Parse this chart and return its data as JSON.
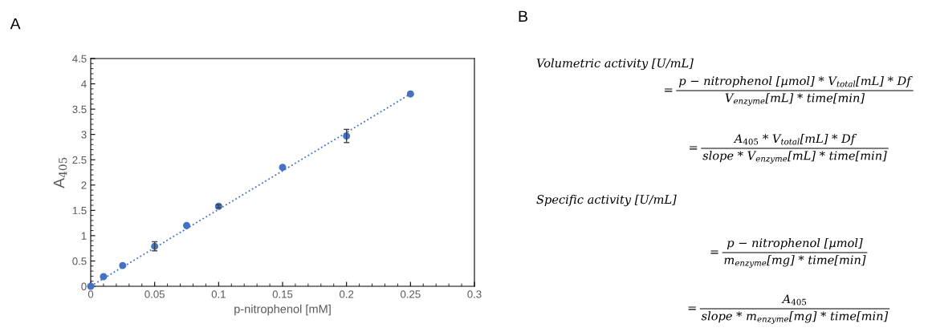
{
  "chart_data": [
    {
      "type": "scatter",
      "title": "A",
      "xlabel": "p-nitrophenol [mM]",
      "ylabel": "A$_{405}$",
      "x": [
        0,
        0.01,
        0.025,
        0.05,
        0.075,
        0.1,
        0.15,
        0.2,
        0.25
      ],
      "series": [
        {
          "type": "scatter",
          "color": "#4472c4",
          "values": [
            0,
            0.19,
            0.41,
            0.79,
            1.2,
            1.58,
            2.35,
            2.97,
            3.8
          ],
          "errors": [
            null,
            null,
            null,
            0.09,
            null,
            0.03,
            null,
            0.13,
            null
          ]
        },
        {
          "type": "line",
          "color": "#4472c4",
          "x": [
            0,
            0.25
          ],
          "values": [
            0,
            3.8
          ],
          "line_style": "dotted",
          "marker": "none"
        }
      ],
      "marker": "circle",
      "xlim": [
        0,
        0.3
      ],
      "xticks": [
        0,
        0.05,
        0.1,
        0.15,
        0.2,
        0.25,
        0.3
      ],
      "ylim": [
        0,
        4.5
      ],
      "yticks": [
        0,
        0.5,
        1,
        1.5,
        2,
        2.5,
        3,
        3.5,
        4,
        4.5
      ],
      "grid": false,
      "legend": false
    },
    {
      "type": "other",
      "title": "B",
      "annotations": [
        "Volumetric activity [U/mL]",
        "=",
        "p − nitrophenol [µmol] * V$_{total}$[mL] * Df",
        "V$_{enzyme}$[mL] * time[min]",
        "=",
        "A$_{405}$ * V$_{total}$[mL] * Df",
        "slope * V$_{enzyme}$[mL] * time[min]",
        "Specific activity [U/mL]",
        "=",
        "p − nitrophenol [µmol]",
        "m$_{enzyme}$[mg] * time[min]",
        "=",
        "A$_{405}$",
        "slope * m$_{enzyme}$[mg] * time[min]"
      ]
    }
  ]
}
